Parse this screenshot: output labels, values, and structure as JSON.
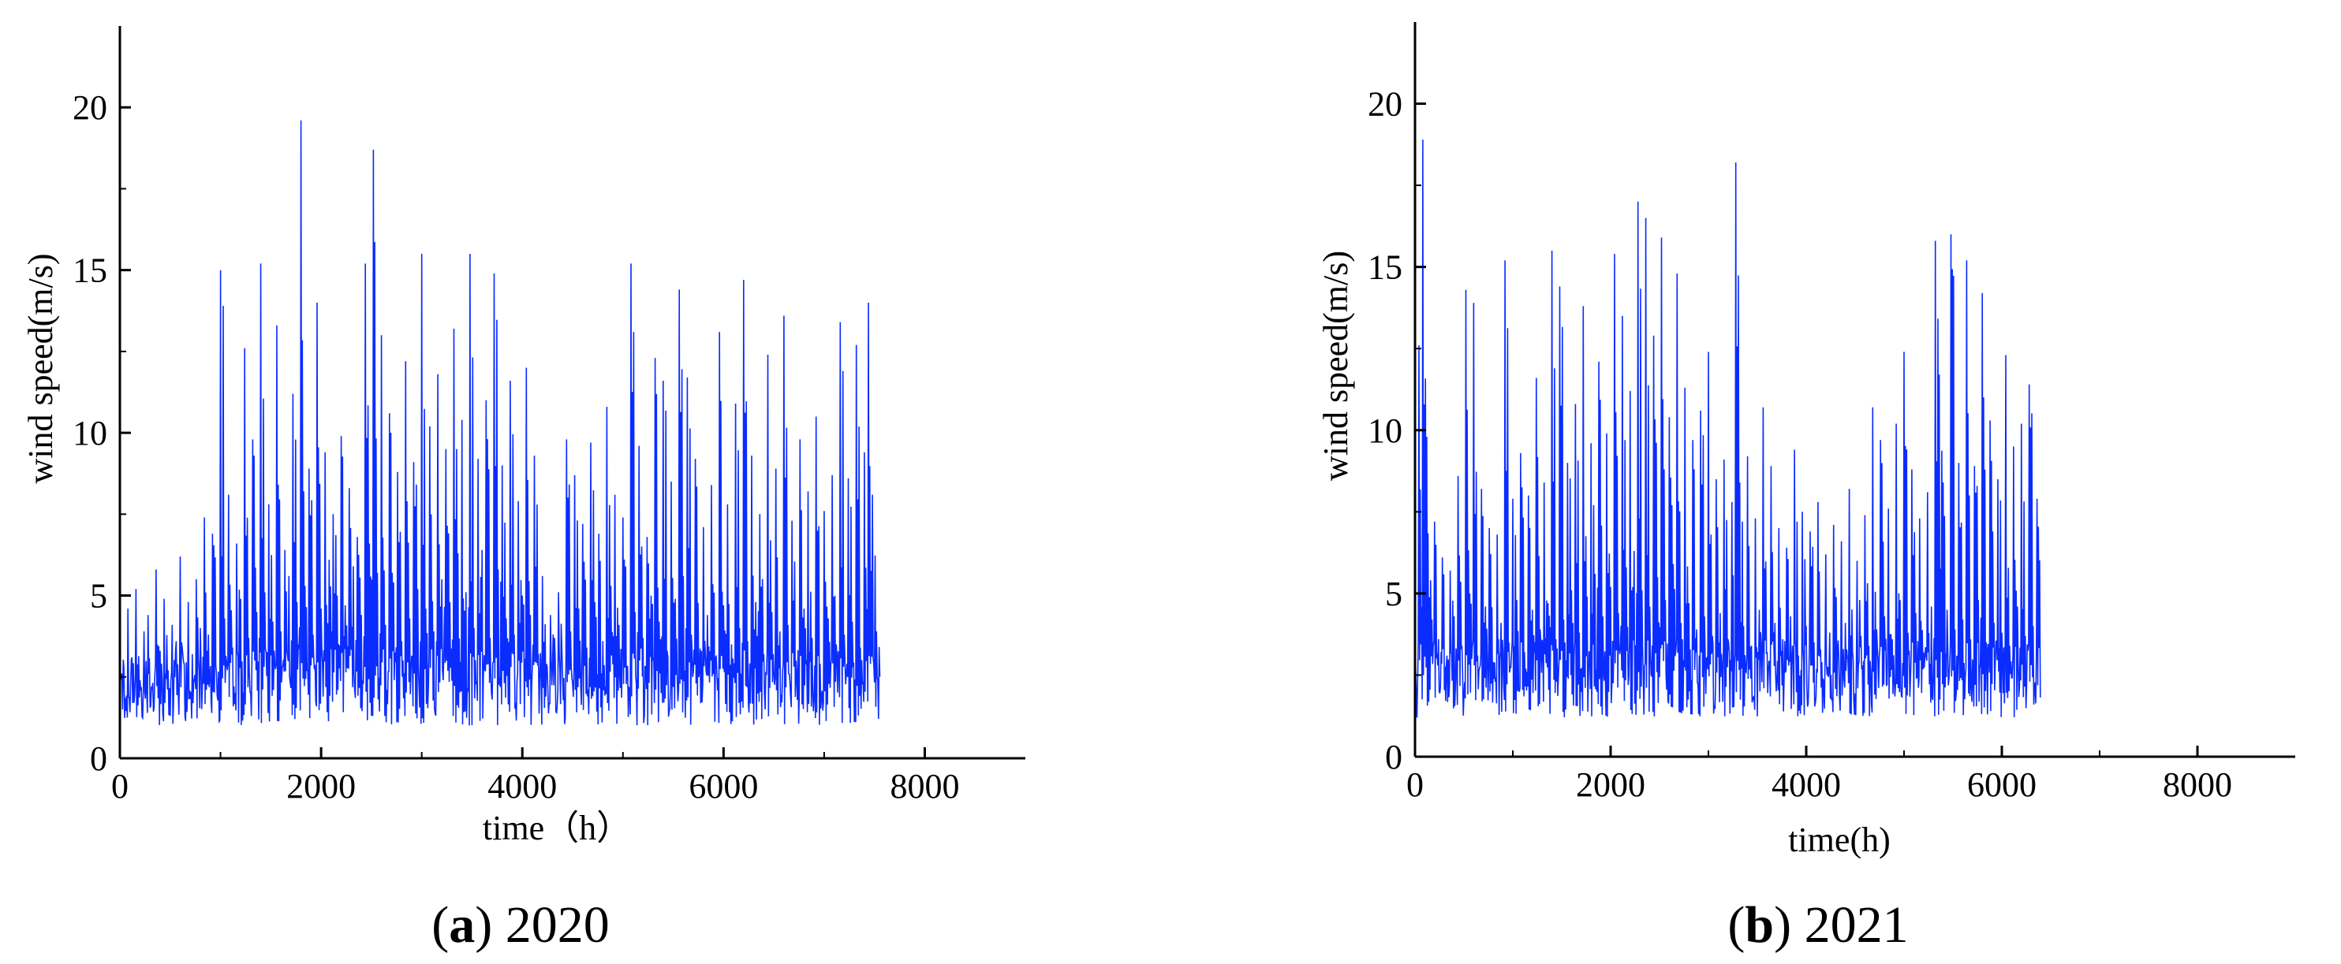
{
  "colors": {
    "series": "#0a2cff",
    "axis": "#000000"
  },
  "chart_data": [
    {
      "type": "line",
      "title": "",
      "xlabel": "time（h）",
      "ylabel": "wind speed(m/s)",
      "xlim": [
        0,
        9000
      ],
      "ylim": [
        0,
        22.5
      ],
      "xticks": [
        0,
        2000,
        4000,
        6000,
        8000
      ],
      "yticks": [
        0,
        5,
        10,
        15,
        20
      ],
      "caption": {
        "letter": "a",
        "text": "2020"
      },
      "legend": "none",
      "grid": false,
      "series": [
        {
          "name": "",
          "sampling_step_hours": 40,
          "x_start": 0,
          "values": [
            3.5,
            2.8,
            4.6,
            3.1,
            5.2,
            2.4,
            3.9,
            4.4,
            2.1,
            5.8,
            3.3,
            4.9,
            2.7,
            4.1,
            3.6,
            6.2,
            2.9,
            4.8,
            3.2,
            5.5,
            4.0,
            7.4,
            3.8,
            6.9,
            2.6,
            15.0,
            4.3,
            8.1,
            3.4,
            6.6,
            4.9,
            12.6,
            3.7,
            9.8,
            4.5,
            15.2,
            5.1,
            7.8,
            4.2,
            13.3,
            3.9,
            6.4,
            5.6,
            11.2,
            4.8,
            19.6,
            5.3,
            8.9,
            3.8,
            14.0,
            4.6,
            9.4,
            6.1,
            7.5,
            5.0,
            9.9,
            4.7,
            8.3,
            5.9,
            6.8,
            4.4,
            15.2,
            6.6,
            18.7,
            5.7,
            13.0,
            4.1,
            10.6,
            5.4,
            8.8,
            3.6,
            12.2,
            4.3,
            9.1,
            5.2,
            15.5,
            4.6,
            10.2,
            3.9,
            11.8,
            5.5,
            9.5,
            4.8,
            13.2,
            6.3,
            10.4,
            5.1,
            15.5,
            4.0,
            9.2,
            6.4,
            11.0,
            3.7,
            14.9,
            5.8,
            9.0,
            4.3,
            11.6,
            3.8,
            7.9,
            5.0,
            12.0,
            4.4,
            9.3,
            3.2,
            5.6,
            2.9,
            4.4,
            3.7,
            5.1,
            2.6,
            9.8,
            3.9,
            8.7,
            4.6,
            7.2,
            3.4,
            9.7,
            4.8,
            6.9,
            3.6,
            10.8,
            5.3,
            8.1,
            4.1,
            7.4,
            2.8,
            15.2,
            4.5,
            9.6,
            3.7,
            6.8,
            5.0,
            12.3,
            4.2,
            11.6,
            3.3,
            8.5,
            4.9,
            14.4,
            5.6,
            11.7,
            3.8,
            9.2,
            2.7,
            7.1,
            4.4,
            8.4,
            3.1,
            13.1,
            4.7,
            7.8,
            3.5,
            10.9,
            4.0,
            14.7,
            3.6,
            9.3,
            4.8,
            7.5,
            3.2,
            12.4,
            4.5,
            8.9,
            3.9,
            13.6,
            4.1,
            7.3,
            3.0,
            9.8,
            4.6,
            8.2,
            3.7,
            10.5,
            2.9,
            7.6,
            4.3,
            8.7,
            3.5,
            13.4,
            3.8,
            8.6,
            4.2,
            12.7,
            3.4,
            9.4,
            14.0,
            8.1,
            3.9
          ],
          "sample_min_overall": 0.4
        }
      ]
    },
    {
      "type": "line",
      "title": "",
      "xlabel": "time(h)",
      "ylabel": "wind speed(m/s)",
      "xlim": [
        0,
        9000
      ],
      "ylim": [
        0,
        22.5
      ],
      "xticks": [
        0,
        2000,
        4000,
        6000,
        8000
      ],
      "yticks": [
        0,
        5,
        10,
        15,
        20
      ],
      "caption": {
        "letter": "b",
        "text": "2021"
      },
      "legend": "none",
      "grid": false,
      "series": [
        {
          "name": "",
          "sampling_step_hours": 40,
          "x_start": 0,
          "values": [
            4.2,
            12.6,
            18.9,
            9.8,
            5.4,
            7.2,
            3.6,
            6.1,
            2.8,
            5.7,
            4.3,
            8.6,
            3.4,
            14.3,
            5.0,
            13.9,
            3.1,
            8.2,
            4.6,
            7.0,
            2.9,
            6.8,
            4.1,
            15.2,
            3.5,
            7.9,
            4.8,
            9.3,
            3.2,
            8.0,
            4.5,
            11.6,
            3.9,
            8.4,
            4.7,
            15.5,
            3.6,
            14.4,
            4.2,
            9.0,
            5.1,
            10.8,
            3.8,
            13.8,
            4.9,
            9.6,
            5.6,
            12.1,
            4.3,
            9.9,
            5.2,
            15.4,
            4.4,
            13.5,
            5.8,
            11.2,
            6.3,
            17.0,
            5.1,
            16.5,
            4.6,
            12.9,
            5.5,
            15.9,
            4.8,
            10.4,
            5.9,
            14.8,
            4.1,
            11.3,
            4.7,
            9.7,
            3.9,
            10.6,
            4.3,
            12.4,
            3.7,
            8.5,
            4.4,
            9.1,
            3.6,
            7.8,
            18.2,
            8.4,
            4.0,
            9.2,
            3.4,
            7.3,
            4.5,
            10.7,
            3.2,
            8.9,
            4.1,
            7.0,
            3.6,
            6.4,
            4.3,
            9.4,
            3.1,
            7.5,
            4.0,
            6.9,
            3.5,
            7.8,
            2.9,
            6.2,
            3.8,
            7.1,
            3.3,
            6.6,
            4.1,
            8.2,
            3.0,
            6.0,
            3.7,
            7.4,
            3.4,
            10.7,
            3.9,
            9.7,
            4.3,
            7.6,
            3.6,
            10.2,
            4.8,
            12.4,
            3.8,
            8.8,
            4.4,
            7.3,
            3.2,
            8.1,
            4.6,
            15.8,
            11.7,
            8.4,
            4.5,
            16.0,
            3.9,
            9.0,
            4.2,
            15.2,
            3.6,
            8.9,
            4.8,
            14.2,
            3.5,
            10.3,
            4.1,
            8.5,
            3.8,
            12.3,
            3.4,
            9.5,
            4.6,
            10.2,
            3.7,
            11.4,
            4.0,
            7.9
          ],
          "sample_min_overall": 0.6
        }
      ]
    }
  ]
}
